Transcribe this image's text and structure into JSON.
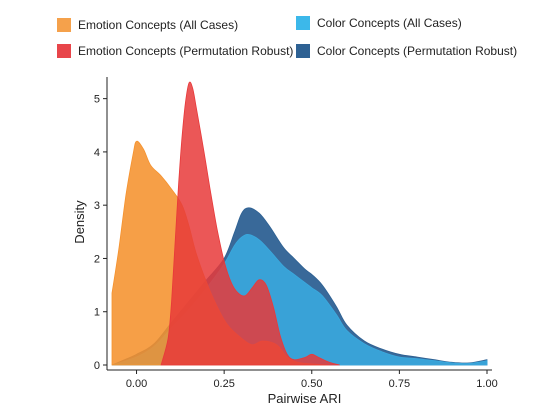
{
  "chart_data": {
    "type": "area",
    "title": "",
    "xlabel": "Pairwise ARI",
    "ylabel": "Density",
    "xlim": [
      -0.07,
      1.0
    ],
    "ylim": [
      0,
      5.5
    ],
    "x_ticks": [
      0.0,
      0.25,
      0.5,
      0.75,
      1.0
    ],
    "x_tick_labels": [
      "0.00",
      "0.25",
      "0.50",
      "0.75",
      "1.00"
    ],
    "y_ticks": [
      0,
      1,
      2,
      3,
      4,
      5
    ],
    "y_tick_labels": [
      "0",
      "1",
      "2",
      "3",
      "4",
      "5"
    ],
    "grid": false,
    "legend_position": "top",
    "series": [
      {
        "name": "Color Concepts (Permutation Robust)",
        "color": "#2e6193",
        "points": [
          [
            -0.07,
            0.0
          ],
          [
            0.0,
            0.2
          ],
          [
            0.05,
            0.4
          ],
          [
            0.1,
            0.8
          ],
          [
            0.15,
            1.2
          ],
          [
            0.2,
            1.6
          ],
          [
            0.25,
            2.0
          ],
          [
            0.28,
            2.5
          ],
          [
            0.3,
            2.85
          ],
          [
            0.32,
            2.95
          ],
          [
            0.35,
            2.85
          ],
          [
            0.38,
            2.6
          ],
          [
            0.42,
            2.2
          ],
          [
            0.45,
            2.0
          ],
          [
            0.48,
            1.8
          ],
          [
            0.5,
            1.7
          ],
          [
            0.53,
            1.5
          ],
          [
            0.57,
            1.1
          ],
          [
            0.6,
            0.75
          ],
          [
            0.65,
            0.45
          ],
          [
            0.7,
            0.3
          ],
          [
            0.75,
            0.2
          ],
          [
            0.8,
            0.15
          ],
          [
            0.85,
            0.1
          ],
          [
            0.9,
            0.05
          ],
          [
            0.95,
            0.04
          ],
          [
            1.0,
            0.1
          ]
        ]
      },
      {
        "name": "Color Concepts (All Cases)",
        "color": "#3aa9de",
        "points": [
          [
            -0.07,
            0.0
          ],
          [
            0.0,
            0.15
          ],
          [
            0.05,
            0.35
          ],
          [
            0.1,
            0.7
          ],
          [
            0.15,
            1.05
          ],
          [
            0.2,
            1.45
          ],
          [
            0.25,
            1.9
          ],
          [
            0.28,
            2.25
          ],
          [
            0.3,
            2.4
          ],
          [
            0.32,
            2.45
          ],
          [
            0.35,
            2.35
          ],
          [
            0.38,
            2.15
          ],
          [
            0.42,
            1.85
          ],
          [
            0.45,
            1.7
          ],
          [
            0.48,
            1.55
          ],
          [
            0.5,
            1.45
          ],
          [
            0.53,
            1.3
          ],
          [
            0.57,
            0.95
          ],
          [
            0.6,
            0.65
          ],
          [
            0.65,
            0.4
          ],
          [
            0.7,
            0.25
          ],
          [
            0.75,
            0.15
          ],
          [
            0.8,
            0.12
          ],
          [
            0.85,
            0.08
          ],
          [
            0.9,
            0.04
          ],
          [
            0.95,
            0.03
          ],
          [
            1.0,
            0.08
          ]
        ]
      },
      {
        "name": "Emotion Concepts (All Cases)",
        "color": "#f5922e",
        "points": [
          [
            -0.07,
            1.35
          ],
          [
            -0.05,
            2.2
          ],
          [
            -0.03,
            3.2
          ],
          [
            -0.01,
            3.95
          ],
          [
            0.0,
            4.2
          ],
          [
            0.02,
            4.05
          ],
          [
            0.04,
            3.75
          ],
          [
            0.07,
            3.55
          ],
          [
            0.1,
            3.3
          ],
          [
            0.13,
            3.0
          ],
          [
            0.15,
            2.6
          ],
          [
            0.17,
            2.1
          ],
          [
            0.2,
            1.55
          ],
          [
            0.23,
            1.1
          ],
          [
            0.26,
            0.75
          ],
          [
            0.3,
            0.5
          ],
          [
            0.33,
            0.38
          ],
          [
            0.36,
            0.45
          ],
          [
            0.4,
            0.38
          ],
          [
            0.43,
            0.15
          ],
          [
            0.46,
            0.05
          ],
          [
            0.5,
            0.02
          ],
          [
            0.55,
            0.0
          ]
        ]
      },
      {
        "name": "Emotion Concepts (Permutation Robust)",
        "color": "#e8393a",
        "points": [
          [
            0.07,
            0.0
          ],
          [
            0.09,
            0.5
          ],
          [
            0.1,
            1.2
          ],
          [
            0.11,
            2.3
          ],
          [
            0.12,
            3.4
          ],
          [
            0.13,
            4.3
          ],
          [
            0.14,
            4.95
          ],
          [
            0.15,
            5.3
          ],
          [
            0.16,
            5.2
          ],
          [
            0.17,
            4.85
          ],
          [
            0.19,
            4.1
          ],
          [
            0.21,
            3.3
          ],
          [
            0.23,
            2.55
          ],
          [
            0.25,
            1.95
          ],
          [
            0.27,
            1.55
          ],
          [
            0.29,
            1.35
          ],
          [
            0.31,
            1.3
          ],
          [
            0.33,
            1.45
          ],
          [
            0.35,
            1.6
          ],
          [
            0.37,
            1.5
          ],
          [
            0.39,
            1.1
          ],
          [
            0.41,
            0.55
          ],
          [
            0.43,
            0.2
          ],
          [
            0.45,
            0.1
          ],
          [
            0.48,
            0.14
          ],
          [
            0.5,
            0.2
          ],
          [
            0.52,
            0.14
          ],
          [
            0.55,
            0.05
          ],
          [
            0.58,
            0.0
          ]
        ]
      }
    ],
    "legend": [
      {
        "label": "Emotion Concepts (All Cases)",
        "color": "#f5a14b"
      },
      {
        "label": "Emotion Concepts (Permutation Robust)",
        "color": "#e8454a"
      },
      {
        "label": "Color Concepts (All Cases)",
        "color": "#3cb8ea"
      },
      {
        "label": "Color Concepts (Permutation Robust)",
        "color": "#2e6193"
      }
    ]
  }
}
